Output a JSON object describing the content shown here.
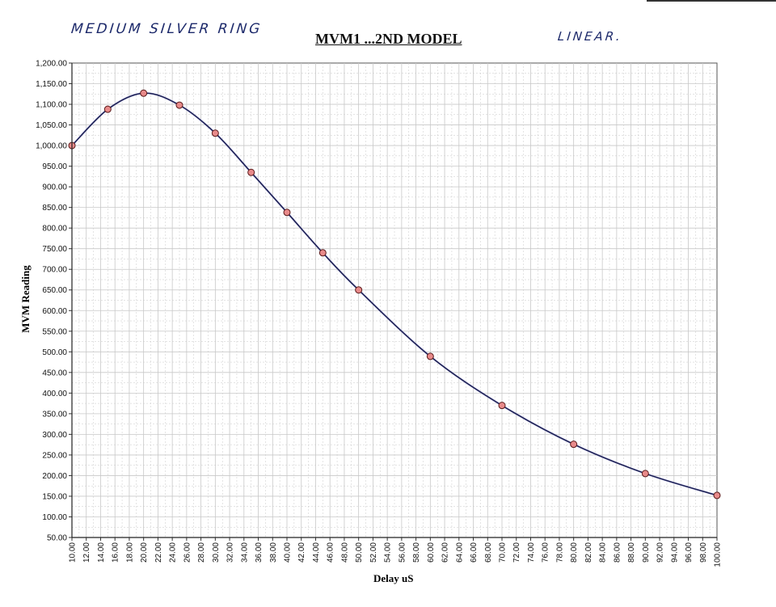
{
  "annotations": {
    "left": "MEDIUM SILVER RING",
    "right": "LINEAR."
  },
  "chart_data": {
    "type": "line",
    "title": "MVM1 ...2ND MODEL",
    "xlabel": "Delay uS",
    "ylabel": "MVM Reading",
    "xlim": [
      10,
      100
    ],
    "ylim": [
      50,
      1200
    ],
    "x_ticks": [
      "10.00",
      "12.00",
      "14.00",
      "16.00",
      "18.00",
      "20.00",
      "22.00",
      "24.00",
      "26.00",
      "28.00",
      "30.00",
      "32.00",
      "34.00",
      "36.00",
      "38.00",
      "40.00",
      "42.00",
      "44.00",
      "46.00",
      "48.00",
      "50.00",
      "52.00",
      "54.00",
      "56.00",
      "58.00",
      "60.00",
      "62.00",
      "64.00",
      "66.00",
      "68.00",
      "70.00",
      "72.00",
      "74.00",
      "76.00",
      "78.00",
      "80.00",
      "82.00",
      "84.00",
      "86.00",
      "88.00",
      "90.00",
      "92.00",
      "94.00",
      "96.00",
      "98.00",
      "100.00"
    ],
    "y_ticks": [
      "50.00",
      "100.00",
      "150.00",
      "200.00",
      "250.00",
      "300.00",
      "350.00",
      "400.00",
      "450.00",
      "500.00",
      "550.00",
      "600.00",
      "650.00",
      "700.00",
      "750.00",
      "800.00",
      "850.00",
      "900.00",
      "950.00",
      "1,000.00",
      "1,050.00",
      "1,100.00",
      "1,150.00",
      "1,200.00"
    ],
    "grid": true,
    "series": [
      {
        "name": "",
        "markers": true,
        "x": [
          10,
          15,
          20,
          25,
          30,
          35,
          40,
          45,
          50,
          60,
          70,
          80,
          90,
          100
        ],
        "y": [
          1000,
          1088,
          1127,
          1098,
          1030,
          935,
          838,
          740,
          650,
          489,
          370,
          276,
          205,
          152
        ]
      }
    ],
    "colors": {
      "line": "#1b1f4a",
      "fit": "#8a8ad8",
      "marker_fill": "#e88a8a",
      "marker_edge": "#5a1a1a",
      "grid": "#c8c8c8"
    }
  }
}
